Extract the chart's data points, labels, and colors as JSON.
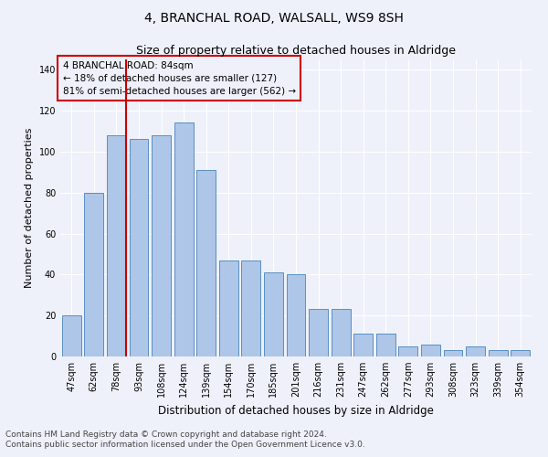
{
  "title": "4, BRANCHAL ROAD, WALSALL, WS9 8SH",
  "subtitle": "Size of property relative to detached houses in Aldridge",
  "xlabel": "Distribution of detached houses by size in Aldridge",
  "ylabel": "Number of detached properties",
  "categories": [
    "47sqm",
    "62sqm",
    "78sqm",
    "93sqm",
    "108sqm",
    "124sqm",
    "139sqm",
    "154sqm",
    "170sqm",
    "185sqm",
    "201sqm",
    "216sqm",
    "231sqm",
    "247sqm",
    "262sqm",
    "277sqm",
    "293sqm",
    "308sqm",
    "323sqm",
    "339sqm",
    "354sqm"
  ],
  "values": [
    20,
    80,
    108,
    106,
    108,
    114,
    91,
    47,
    47,
    41,
    40,
    23,
    23,
    11,
    11,
    5,
    6,
    3,
    5,
    3,
    3
  ],
  "bar_color": "#aec6e8",
  "bar_edgecolor": "#5a8fc2",
  "ylim": [
    0,
    145
  ],
  "yticks": [
    0,
    20,
    40,
    60,
    80,
    100,
    120,
    140
  ],
  "property_label": "4 BRANCHAL ROAD: 84sqm",
  "annotation_line1": "← 18% of detached houses are smaller (127)",
  "annotation_line2": "81% of semi-detached houses are larger (562) →",
  "vline_x_index": 2,
  "box_color": "#cc0000",
  "footnote1": "Contains HM Land Registry data © Crown copyright and database right 2024.",
  "footnote2": "Contains public sector information licensed under the Open Government Licence v3.0.",
  "background_color": "#eef1fa",
  "grid_color": "#ffffff",
  "title_fontsize": 10,
  "subtitle_fontsize": 9,
  "axis_label_fontsize": 8,
  "tick_fontsize": 7,
  "annotation_fontsize": 7.5,
  "footnote_fontsize": 6.5
}
